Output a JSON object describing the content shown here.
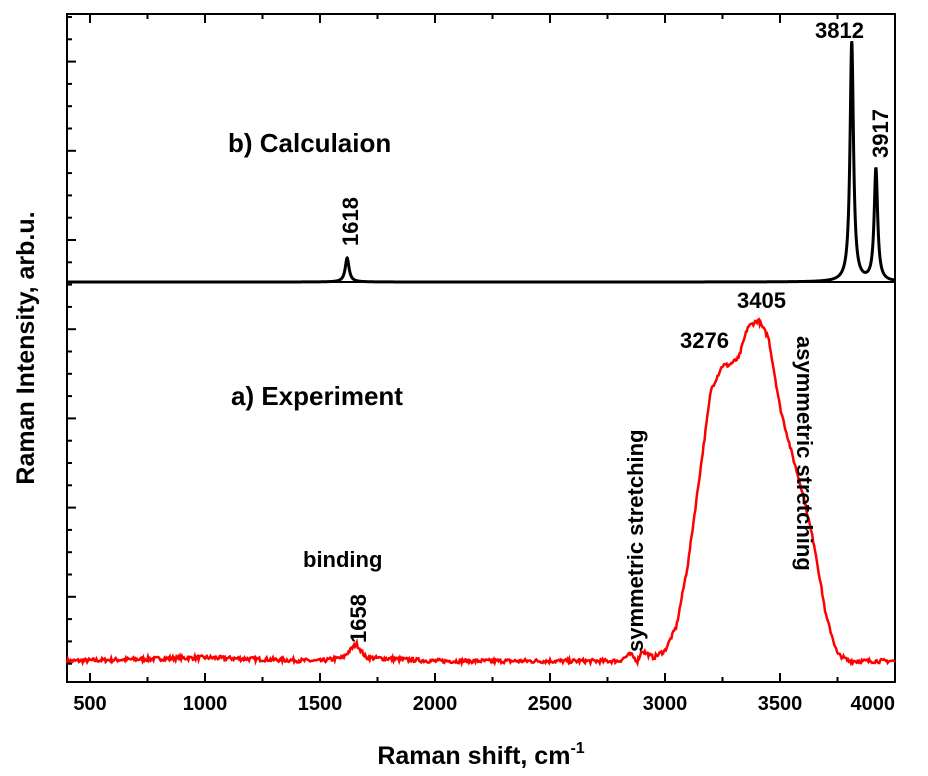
{
  "chart_data": {
    "type": "line",
    "xlabel": "Raman shift, cm",
    "xlabel_sup": "-1",
    "ylabel": "Raman Intensity, arb.u.",
    "xlim": [
      400,
      4000
    ],
    "x_ticks": [
      500,
      1000,
      1500,
      2000,
      2500,
      3000,
      3500,
      4000
    ],
    "grid": false,
    "colors": {
      "experiment": "#ff0000",
      "calculation": "#000000",
      "axis": "#000000"
    },
    "panel_labels": {
      "calculation": "b) Calculaion",
      "experiment": "a) Experiment"
    },
    "annotations": {
      "binding": "binding",
      "symmetric": "symmetric stretching",
      "asymmetric": "asymmetric stretching"
    },
    "series": [
      {
        "id": "calculation",
        "baseline": 0,
        "peaks": [
          {
            "center": 1618,
            "height": 0.1,
            "width": 10,
            "label": "1618"
          },
          {
            "center": 3812,
            "height": 1.0,
            "width": 9,
            "label": "3812"
          },
          {
            "center": 3917,
            "height": 0.47,
            "width": 9,
            "label": "3917"
          }
        ]
      },
      {
        "id": "experiment",
        "baseline": 0.02,
        "points": [
          [
            400,
            0.02
          ],
          [
            1000,
            0.03
          ],
          [
            1500,
            0.02
          ],
          [
            1600,
            0.03
          ],
          [
            1658,
            0.07
          ],
          [
            1700,
            0.03
          ],
          [
            2000,
            0.02
          ],
          [
            2500,
            0.02
          ],
          [
            2800,
            0.02
          ],
          [
            2850,
            0.04
          ],
          [
            2880,
            0.02
          ],
          [
            2900,
            0.05
          ],
          [
            2950,
            0.03
          ],
          [
            3000,
            0.05
          ],
          [
            3050,
            0.12
          ],
          [
            3100,
            0.3
          ],
          [
            3150,
            0.55
          ],
          [
            3200,
            0.8
          ],
          [
            3250,
            0.87
          ],
          [
            3276,
            0.87
          ],
          [
            3320,
            0.89
          ],
          [
            3360,
            0.98
          ],
          [
            3405,
            1.0
          ],
          [
            3450,
            0.95
          ],
          [
            3500,
            0.75
          ],
          [
            3550,
            0.62
          ],
          [
            3600,
            0.5
          ],
          [
            3650,
            0.35
          ],
          [
            3700,
            0.15
          ],
          [
            3750,
            0.04
          ],
          [
            3800,
            0.02
          ],
          [
            4000,
            0.02
          ]
        ],
        "peaks": [
          {
            "center": 1658,
            "label": "1658"
          },
          {
            "center": 3276,
            "label": "3276"
          },
          {
            "center": 3405,
            "label": "3405"
          }
        ]
      }
    ]
  }
}
